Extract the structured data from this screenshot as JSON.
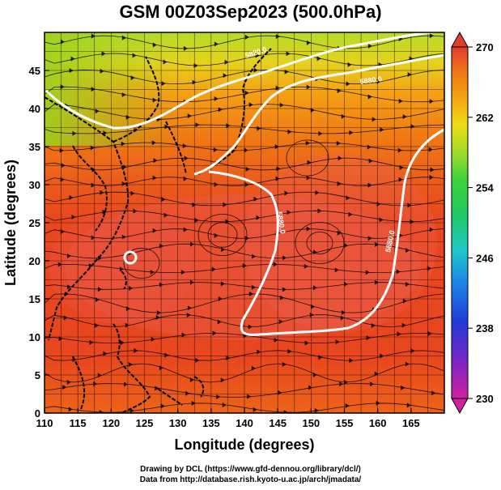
{
  "title": "GSM 00Z03Sep2023 (500.0hPa)",
  "x_axis": {
    "label": "Longitude (degrees)",
    "ticks": [
      110,
      115,
      120,
      125,
      130,
      135,
      140,
      145,
      150,
      155,
      160,
      165
    ],
    "range": [
      110,
      170
    ]
  },
  "y_axis": {
    "label": "Latitude  (degrees)",
    "ticks": [
      0,
      5,
      10,
      15,
      20,
      25,
      30,
      35,
      40,
      45
    ],
    "range": [
      0,
      50
    ]
  },
  "colorbar": {
    "ticks": [
      270,
      262,
      254,
      246,
      238,
      230
    ],
    "range": [
      230,
      270
    ],
    "colors": [
      "#d21fa0",
      "#5a28c8",
      "#1f3cd8",
      "#1eb4e6",
      "#20c88c",
      "#3cd23c",
      "#a0dc28",
      "#f0dc14",
      "#f5a014",
      "#f07814",
      "#e8461e",
      "#e23b2f"
    ]
  },
  "contours": [
    {
      "label": "5820.0"
    },
    {
      "label": "5880.0"
    },
    {
      "label": "5880.0"
    },
    {
      "label": "5880.0"
    }
  ],
  "credits": {
    "line1": "Drawing by DCL (https://www.gfd-dennou.org/library/dcl/)",
    "line2": "Data from http://database.rish.kyoto-u.ac.jp/arch/jmadata/"
  },
  "chart_data": {
    "type": "heatmap",
    "title": "GSM 00Z03Sep2023 (500.0hPa)",
    "xlabel": "Longitude (degrees)",
    "ylabel": "Latitude  (degrees)",
    "xlim": [
      110,
      170
    ],
    "ylim": [
      0,
      50
    ],
    "colorbar_range": [
      230,
      270
    ],
    "contour_levels": [
      5820.0,
      5880.0
    ],
    "grid": true
  }
}
